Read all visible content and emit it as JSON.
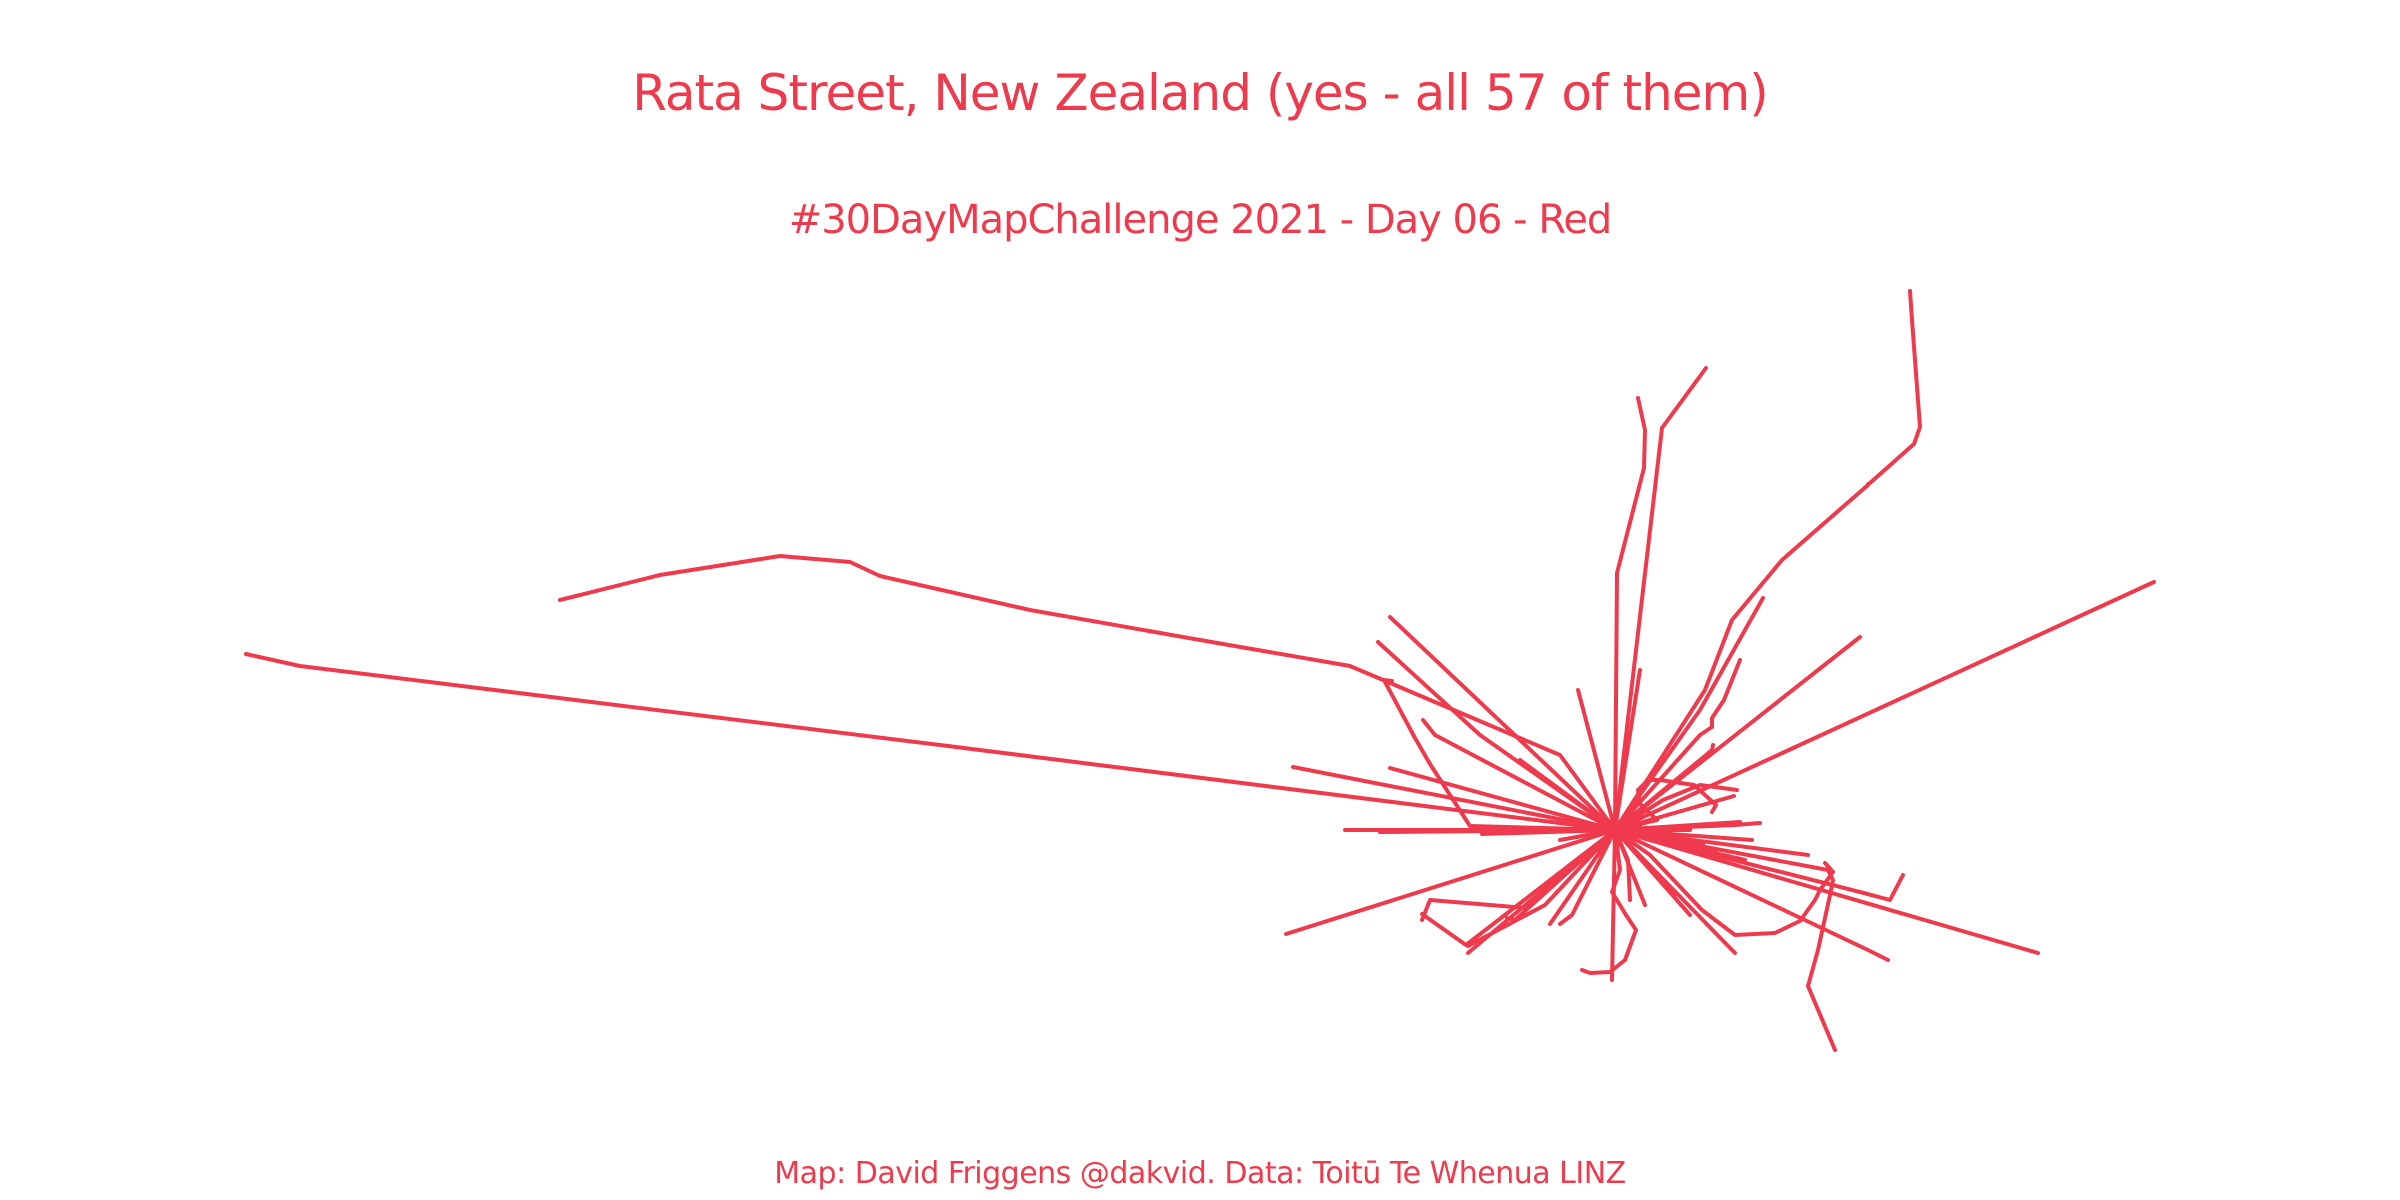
{
  "title": "Rata Street, New Zealand (yes - all 57 of them)",
  "subtitle": "#30DayMapChallenge 2021 - Day 06 - Red",
  "caption": "Map: David Friggens @dakvid. Data: Toitū Te Whenua LINZ",
  "colors": {
    "accent": "#EE3A4C",
    "background": "#FFFFFF"
  },
  "map_data": {
    "feature_name": "Rata Street",
    "feature_count": 57,
    "line_color": "#EE3A4C"
  }
}
